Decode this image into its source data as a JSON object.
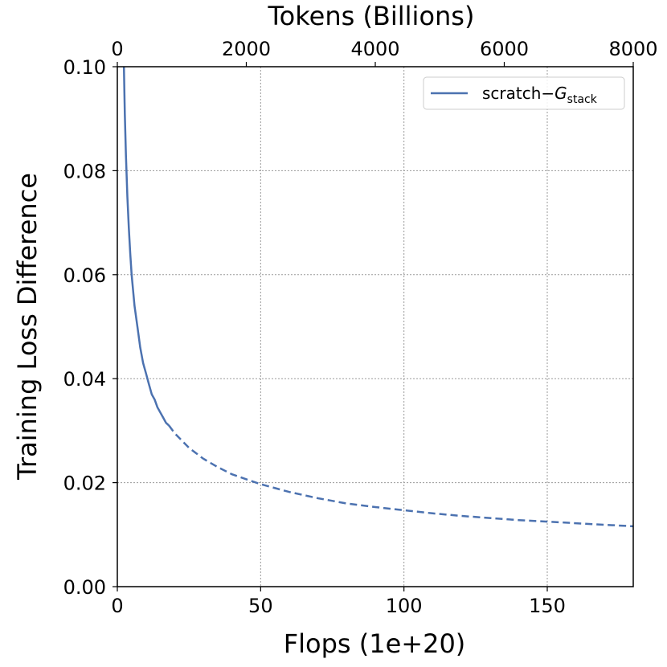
{
  "chart_data": {
    "type": "line",
    "xlabel": "Flops (1e+20)",
    "ylabel": "Training Loss Difference",
    "top_xlabel": "Tokens (Billions)",
    "xlim": [
      0,
      180
    ],
    "ylim": [
      0,
      0.1
    ],
    "top_xlim": [
      0,
      8000
    ],
    "x_ticks": [
      0,
      50,
      100,
      150
    ],
    "x_tick_labels": [
      "0",
      "50",
      "100",
      "150"
    ],
    "top_x_ticks": [
      0,
      2000,
      4000,
      6000,
      8000
    ],
    "top_x_tick_labels": [
      "0",
      "2000",
      "4000",
      "6000",
      "8000"
    ],
    "y_ticks": [
      0,
      0.02,
      0.04,
      0.06,
      0.08,
      0.1
    ],
    "y_tick_labels": [
      "0.00",
      "0.02",
      "0.04",
      "0.06",
      "0.08",
      "0.10"
    ],
    "grid": true,
    "legend": {
      "placement": "top-right",
      "label_main": "scratch−",
      "label_var": "G",
      "label_sub": "stack"
    },
    "color": "#4c72b0",
    "series": [
      {
        "name": "scratch−G_stack",
        "style": "solid",
        "x": [
          2.3,
          2.6,
          3,
          3.5,
          4,
          4.5,
          5,
          5.5,
          6,
          7,
          8,
          9,
          10,
          11,
          12,
          13,
          14,
          15,
          16,
          17,
          18
        ],
        "y": [
          0.1,
          0.091,
          0.083,
          0.075,
          0.069,
          0.064,
          0.06,
          0.057,
          0.054,
          0.05,
          0.046,
          0.043,
          0.041,
          0.039,
          0.037,
          0.036,
          0.0345,
          0.0335,
          0.0325,
          0.0315,
          0.031
        ]
      },
      {
        "name": "scratch−G_stack (extrapolated)",
        "style": "dashed",
        "x": [
          18,
          20,
          25,
          30,
          35,
          40,
          50,
          60,
          70,
          80,
          90,
          100,
          110,
          120,
          130,
          140,
          150,
          160,
          170,
          180
        ],
        "y": [
          0.031,
          0.0295,
          0.0267,
          0.0246,
          0.023,
          0.0216,
          0.0197,
          0.0182,
          0.017,
          0.016,
          0.0153,
          0.0147,
          0.0141,
          0.0136,
          0.0132,
          0.0128,
          0.0125,
          0.0122,
          0.0119,
          0.0116
        ]
      }
    ]
  }
}
